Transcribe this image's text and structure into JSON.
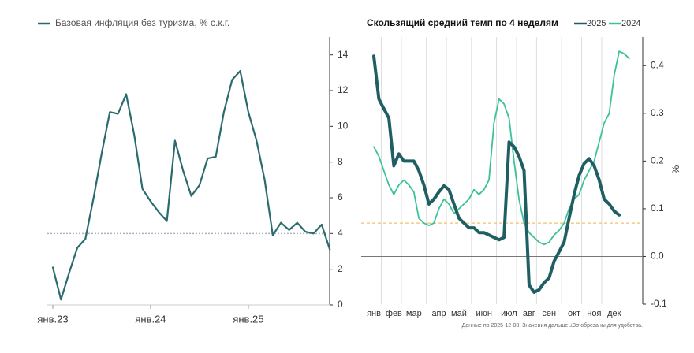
{
  "chart_data": [
    {
      "type": "line",
      "categories": [
        "янв.23",
        null,
        null,
        null,
        null,
        null,
        null,
        null,
        null,
        null,
        null,
        null,
        "янв.24",
        null,
        null,
        null,
        null,
        null,
        null,
        null,
        null,
        null,
        null,
        null,
        "янв.25",
        null,
        null,
        null,
        null,
        null,
        null,
        null,
        null,
        null,
        null
      ],
      "series": [
        {
          "name": "Базовая инфляция без туризма, % с.к.г.",
          "color": "#2a6b6e",
          "values": [
            2.1,
            0.3,
            1.8,
            3.2,
            3.7,
            6,
            8.5,
            10.8,
            10.7,
            11.8,
            9.5,
            6.5,
            5.8,
            5.2,
            4.7,
            9.2,
            7.5,
            6.1,
            6.7,
            8.2,
            8.3,
            10.8,
            12.6,
            13.1,
            10.8,
            9.2,
            7,
            3.9,
            4.6,
            4.2,
            4.6,
            4.1,
            4,
            4.5,
            3.1
          ]
        }
      ],
      "reference_line": 4,
      "ylim": [
        0,
        15
      ],
      "yticks": [
        0,
        2,
        4,
        6,
        8,
        10,
        12,
        14
      ]
    },
    {
      "type": "line",
      "title": "Скользящий средний темп по 4 неделям",
      "y_label": "%",
      "note": "Данные по 2025-12-08. Значения дальше ±3σ обрезаны для удобства.",
      "categories": [
        "янв",
        null,
        null,
        null,
        "фев",
        null,
        null,
        null,
        "мар",
        null,
        null,
        null,
        null,
        "апр",
        null,
        null,
        null,
        "май",
        null,
        null,
        null,
        null,
        "июн",
        null,
        null,
        null,
        null,
        "июл",
        null,
        null,
        null,
        "авг",
        null,
        null,
        null,
        "сен",
        null,
        null,
        null,
        null,
        "окт",
        null,
        null,
        null,
        "ноя",
        null,
        null,
        null,
        "дек",
        null,
        null,
        null
      ],
      "series": [
        {
          "name": "2025",
          "color": "#1f5f63",
          "width": 4,
          "values": [
            0.42,
            0.33,
            0.31,
            0.29,
            0.19,
            0.215,
            0.2,
            0.2,
            0.2,
            0.18,
            0.15,
            0.11,
            0.12,
            0.135,
            0.148,
            0.14,
            0.11,
            0.08,
            0.07,
            0.06,
            0.06,
            0.05,
            0.05,
            0.045,
            0.04,
            0.035,
            0.04,
            0.24,
            0.23,
            0.21,
            0.18,
            -0.06,
            -0.075,
            -0.07,
            -0.055,
            -0.045,
            -0.01,
            0.01,
            0.03,
            0.08,
            0.13,
            0.17,
            0.195,
            0.205,
            0.19,
            0.16,
            0.12,
            0.11,
            0.095,
            0.087,
            null,
            null
          ]
        },
        {
          "name": "2024",
          "color": "#3cc19a",
          "width": 1.8,
          "values": [
            0.23,
            0.21,
            0.18,
            0.15,
            0.13,
            0.15,
            0.16,
            0.15,
            0.135,
            0.08,
            0.07,
            0.065,
            0.07,
            0.1,
            0.12,
            0.11,
            0.09,
            0.1,
            0.11,
            0.12,
            0.14,
            0.13,
            0.14,
            0.16,
            0.28,
            0.33,
            0.32,
            0.29,
            0.2,
            0.12,
            0.07,
            0.05,
            0.04,
            0.03,
            0.025,
            0.03,
            0.045,
            0.055,
            0.07,
            0.1,
            0.12,
            0.13,
            0.16,
            0.18,
            0.2,
            0.24,
            0.28,
            0.3,
            0.38,
            0.43,
            0.425,
            0.415
          ]
        }
      ],
      "reference_line": 0.07,
      "ylim": [
        -0.1,
        0.46
      ],
      "yticks": [
        -0.1,
        {
          "value": 0,
          "label": "0.0"
        },
        0.1,
        0.2,
        0.3,
        0.4
      ]
    }
  ]
}
